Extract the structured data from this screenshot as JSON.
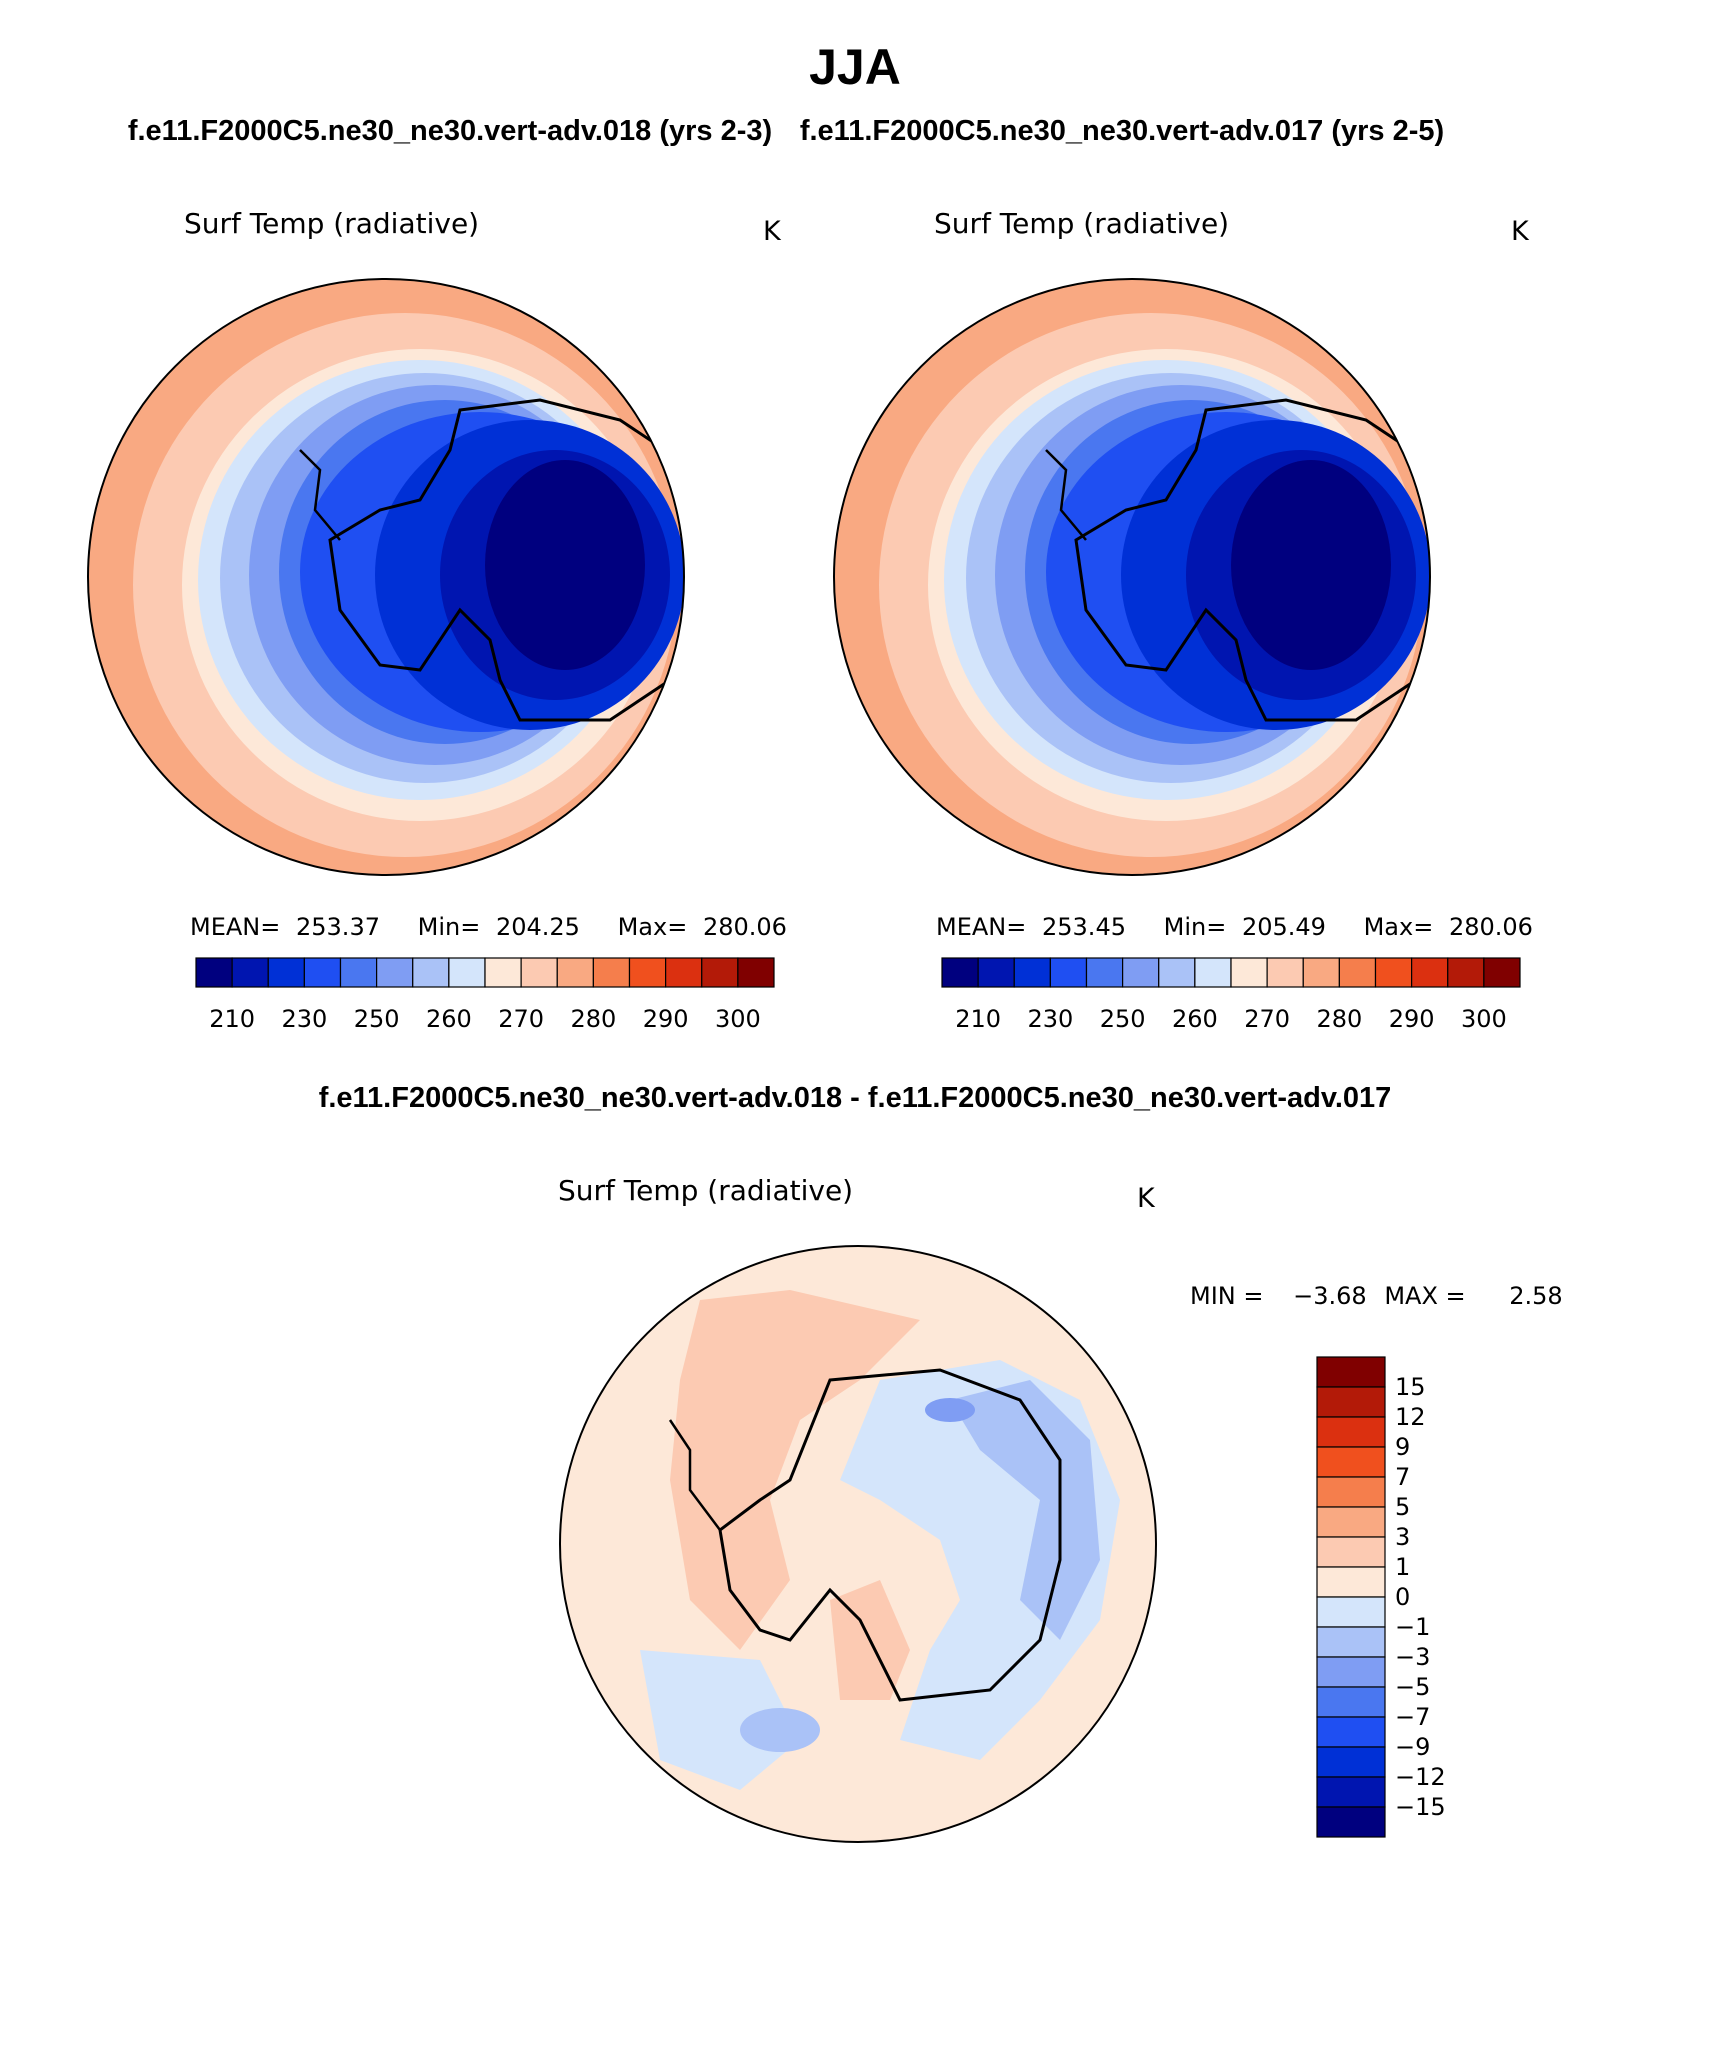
{
  "figure": {
    "season": "JJA",
    "case_a": "f.e11.F2000C5.ne30_ne30.vert-adv.018 (yrs 2-3)",
    "case_b": "f.e11.F2000C5.ne30_ne30.vert-adv.017 (yrs 2-5)",
    "diff_title": "f.e11.F2000C5.ne30_ne30.vert-adv.018 - f.e11.F2000C5.ne30_ne30.vert-adv.017"
  },
  "panels": [
    {
      "field": "Surf Temp (radiative)",
      "units": "K",
      "stats": {
        "mean_label": "MEAN=",
        "mean": "253.37",
        "min_label": "Min=",
        "min": "204.25",
        "max_label": "Max=",
        "max": "280.06"
      }
    },
    {
      "field": "Surf Temp (radiative)",
      "units": "K",
      "stats": {
        "mean_label": "MEAN=",
        "mean": "253.45",
        "min_label": "Min=",
        "min": "205.49",
        "max_label": "Max=",
        "max": "280.06"
      }
    }
  ],
  "diff_panel": {
    "field": "Surf Temp (radiative)",
    "units": "K",
    "min_label": "MIN =",
    "min": "−3.68",
    "max_label": "MAX =",
    "max": "2.58"
  },
  "colorbar_abs": {
    "colors": [
      "#00007f",
      "#0015b0",
      "#0030d6",
      "#1f4ff2",
      "#4a77f0",
      "#7f9df3",
      "#aac2f7",
      "#d4e5fb",
      "#fde8d8",
      "#fccab2",
      "#f9a982",
      "#f57e4c",
      "#f0501e",
      "#db3010",
      "#b31a08",
      "#800000"
    ],
    "tick_labels": [
      "210",
      "230",
      "250",
      "260",
      "270",
      "280",
      "290",
      "300"
    ]
  },
  "colorbar_diff": {
    "colors": [
      "#800000",
      "#b31a08",
      "#db3010",
      "#f0501e",
      "#f57e4c",
      "#f9a982",
      "#fccab2",
      "#fde8d8",
      "#d4e5fb",
      "#aac2f7",
      "#7f9df3",
      "#4a77f0",
      "#1f4ff2",
      "#0030d6",
      "#0015b0",
      "#00007f"
    ],
    "tick_labels": [
      "15",
      "12",
      "9",
      "7",
      "5",
      "3",
      "1",
      "0",
      "−1",
      "−3",
      "−5",
      "−7",
      "−9",
      "−12",
      "−15"
    ]
  }
}
